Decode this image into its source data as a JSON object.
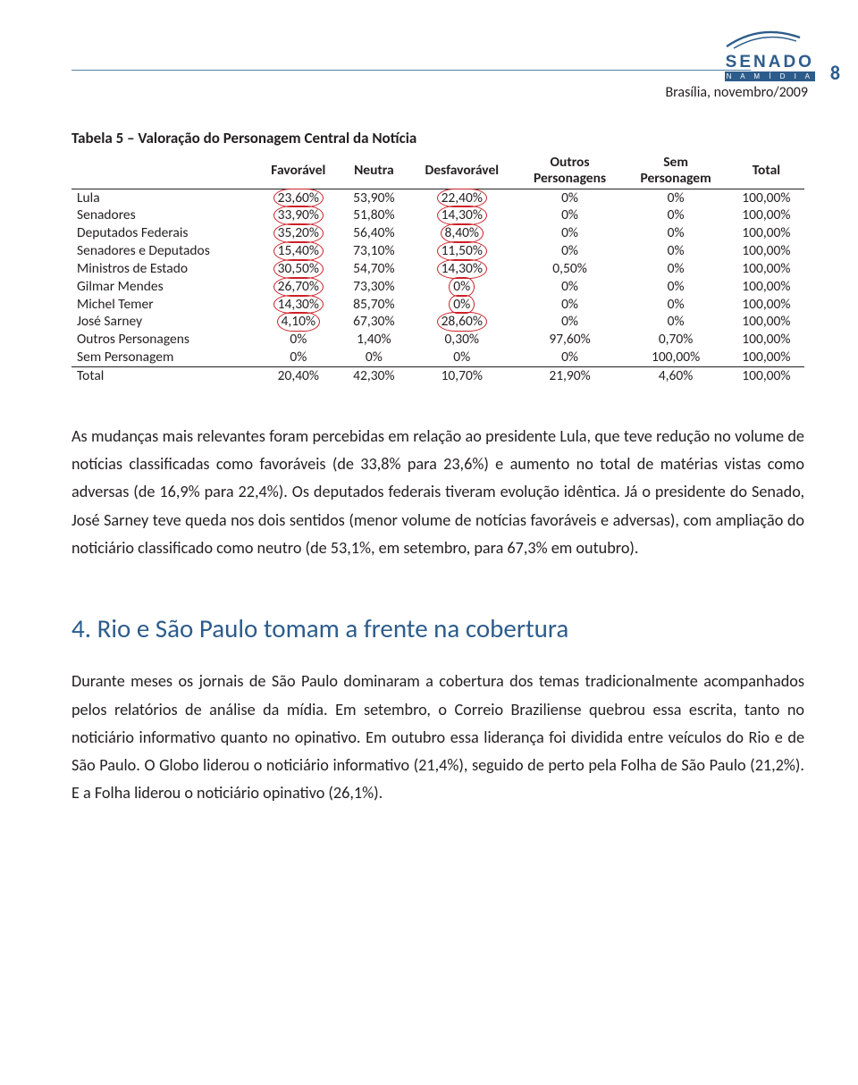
{
  "header": {
    "date_line": "Brasília, novembro/2009",
    "page_number": "8",
    "logo_brand": "SENADO",
    "logo_sub": "N A   M Í D I A"
  },
  "table": {
    "title": "Tabela 5 – Valoração do Personagem Central da Notícia",
    "columns": [
      "",
      "Favorável",
      "Neutra",
      "Desfavorável",
      "Outros Personagens",
      "Sem Personagem",
      "Total"
    ],
    "rows": [
      {
        "label": "Lula",
        "cells": [
          "23,60%",
          "53,90%",
          "22,40%",
          "0%",
          "0%",
          "100,00%"
        ],
        "circled": [
          0,
          2
        ]
      },
      {
        "label": "Senadores",
        "cells": [
          "33,90%",
          "51,80%",
          "14,30%",
          "0%",
          "0%",
          "100,00%"
        ],
        "circled": [
          0,
          2
        ]
      },
      {
        "label": "Deputados Federais",
        "cells": [
          "35,20%",
          "56,40%",
          "8,40%",
          "0%",
          "0%",
          "100,00%"
        ],
        "circled": [
          0,
          2
        ]
      },
      {
        "label": "Senadores e Deputados",
        "cells": [
          "15,40%",
          "73,10%",
          "11,50%",
          "0%",
          "0%",
          "100,00%"
        ],
        "circled": [
          0,
          2
        ]
      },
      {
        "label": "Ministros de Estado",
        "cells": [
          "30,50%",
          "54,70%",
          "14,30%",
          "0,50%",
          "0%",
          "100,00%"
        ],
        "circled": [
          0,
          2
        ]
      },
      {
        "label": "Gilmar Mendes",
        "cells": [
          "26,70%",
          "73,30%",
          "0%",
          "0%",
          "0%",
          "100,00%"
        ],
        "circled": [
          0,
          2
        ]
      },
      {
        "label": "Michel Temer",
        "cells": [
          "14,30%",
          "85,70%",
          "0%",
          "0%",
          "0%",
          "100,00%"
        ],
        "circled": [
          0,
          2
        ]
      },
      {
        "label": "José Sarney",
        "cells": [
          "4,10%",
          "67,30%",
          "28,60%",
          "0%",
          "0%",
          "100,00%"
        ],
        "circled": [
          0,
          2
        ]
      },
      {
        "label": "Outros Personagens",
        "cells": [
          "0%",
          "1,40%",
          "0,30%",
          "97,60%",
          "0,70%",
          "100,00%"
        ],
        "circled": []
      },
      {
        "label": "Sem Personagem",
        "cells": [
          "0%",
          "0%",
          "0%",
          "0%",
          "100,00%",
          "100,00%"
        ],
        "circled": []
      },
      {
        "label": "Total",
        "cells": [
          "20,40%",
          "42,30%",
          "10,70%",
          "21,90%",
          "4,60%",
          "100,00%"
        ],
        "circled": [],
        "is_total": true
      }
    ],
    "circle_color": "#cc2027",
    "border_color": "#231f20"
  },
  "paragraphs": {
    "p1": "As mudanças mais relevantes foram percebidas em relação ao presidente Lula, que teve redução no volume de notícias classificadas como favoráveis (de 33,8% para 23,6%) e aumento no total de matérias vistas como adversas (de 16,9% para 22,4%). Os deputados federais tiveram evolução idêntica. Já o presidente do Senado, José Sarney teve queda nos dois sentidos (menor volume de notícias favoráveis e adversas), com ampliação do noticiário classificado como neutro (de 53,1%, em setembro, para 67,3% em outubro).",
    "heading": "4. Rio e São Paulo tomam a frente na cobertura",
    "p2": "Durante meses os jornais de São Paulo dominaram a cobertura dos temas tradicionalmente acompanhados pelos relatórios de análise da mídia. Em setembro, o Correio Braziliense quebrou essa escrita, tanto no noticiário informativo quanto no opinativo. Em outubro essa liderança foi dividida entre veículos do Rio e de São Paulo. O Globo liderou o noticiário informativo (21,4%), seguido de perto pela Folha de São Paulo (21,2%). E a Folha liderou o noticiário opinativo (26,1%)."
  },
  "colors": {
    "page_bg": "#ffffff",
    "text": "#231f20",
    "accent_blue": "#2d5c8b",
    "line_blue": "#507fa8",
    "circle_red": "#cc2027"
  }
}
